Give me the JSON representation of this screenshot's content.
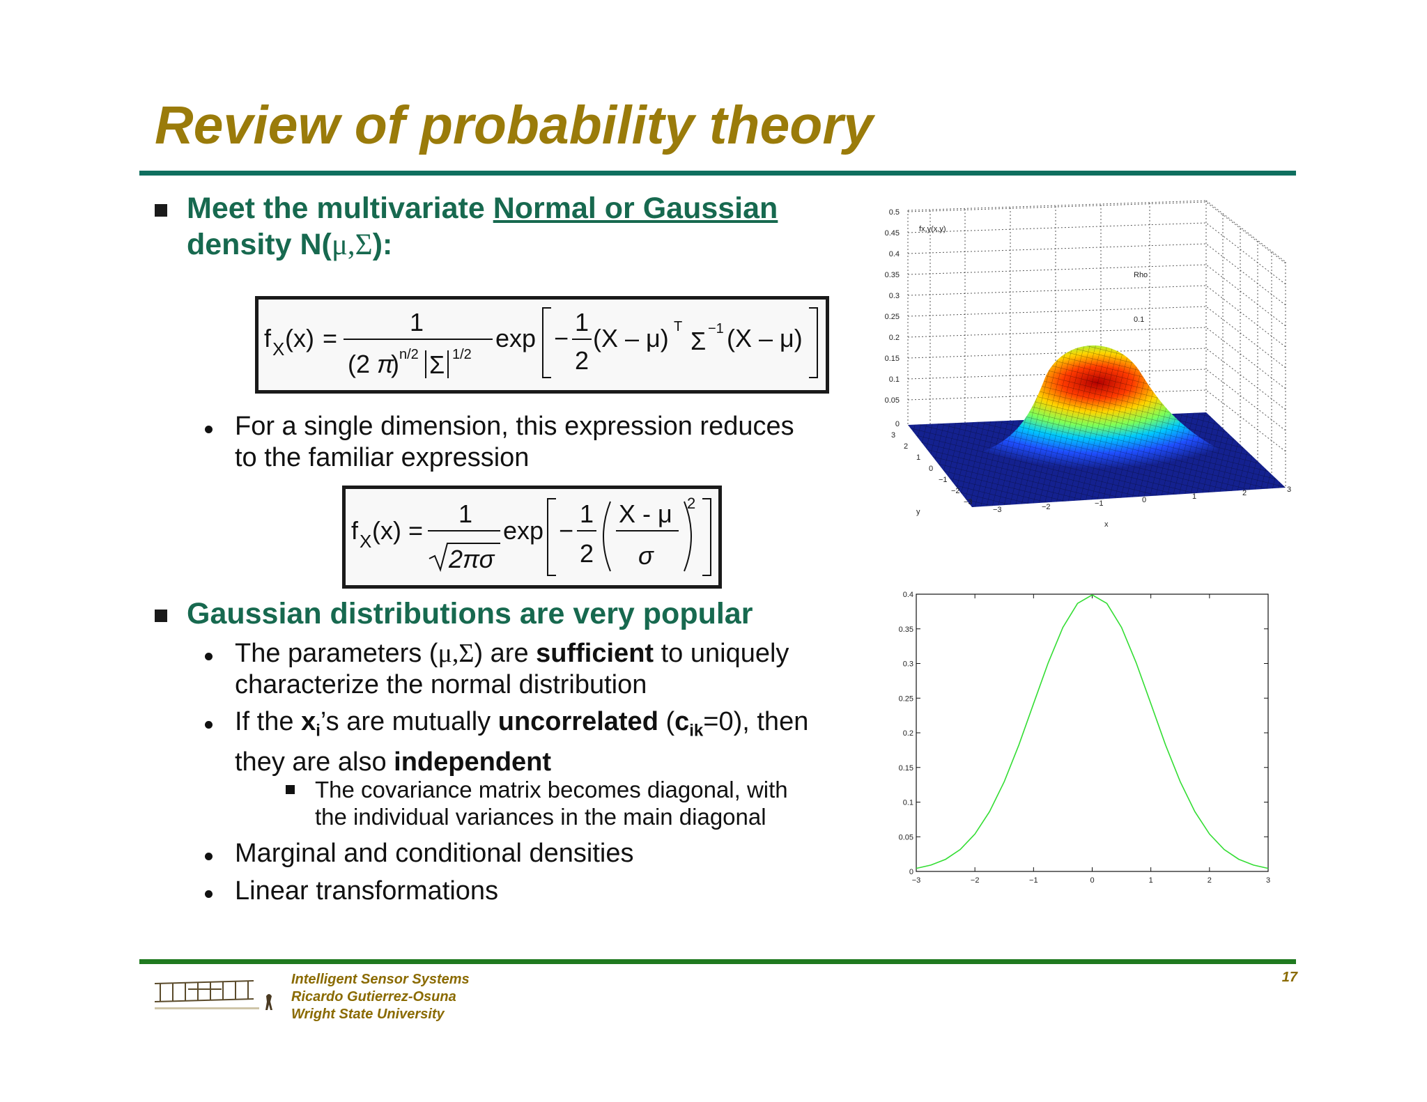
{
  "title": "Review of probability theory",
  "bullets": {
    "b1_pre": "Meet the multivariate ",
    "b1_link": "Normal or Gaussian",
    "b1_line2_pre": "density N(",
    "b1_greek": "μ,Σ",
    "b1_line2_post": "):",
    "sub1_line1": "For a single dimension, this expression reduces",
    "sub1_line2": "to the familiar expression",
    "b2": "Gaussian distributions are very popular",
    "sub2_pre": "The parameters (",
    "sub2_greek": "μ,Σ",
    "sub2_mid": ") are ",
    "sub2_bold": "sufficient",
    "sub2_post": " to uniquely",
    "sub2_line2": "characterize the normal distribution",
    "sub3_pre": "If the ",
    "sub3_x": "x",
    "sub3_i": "i",
    "sub3_mid": "’s are mutually ",
    "sub3_bold": "uncorrelated",
    "sub3_paren": " (",
    "sub3_c": "c",
    "sub3_ik": "ik",
    "sub3_post": "=0), then",
    "sub3_line2_pre": "they are also ",
    "sub3_line2_bold": "independent",
    "subsub1_line1": "The covariance matrix becomes diagonal, with",
    "subsub1_line2": "the individual variances in the main diagonal",
    "sub4": "Marginal and conditional densities",
    "sub5": "Linear transformations"
  },
  "eq1": {
    "lhs": "f",
    "lhs_sub": "X",
    "lhs_arg": "(x)",
    "eq": "=",
    "num": "1",
    "den_pre": "(2 ",
    "den_pi": "π",
    "den_close": ")",
    "den_exp1": "n/2",
    "den_sigma": "Σ",
    "den_exp2": "1/2",
    "exp": "exp",
    "minus": "−",
    "half_num": "1",
    "half_den": "2",
    "term1": "(X – μ)",
    "sup_T": "T",
    "sigma": "Σ",
    "sup_inv": "−1",
    "term2": "(X – μ)"
  },
  "eq2": {
    "lhs": "f",
    "lhs_sub": "X",
    "lhs_arg": "(x)",
    "eq": "=",
    "num": "1",
    "den": "2πσ",
    "exp": "exp",
    "minus": "−",
    "half_num": "1",
    "half_den": "2",
    "frac_num": "X - μ",
    "frac_den": "σ",
    "power": "2"
  },
  "surface_plot": {
    "zlabel": "fx,y(x,y)",
    "ztick_labels": [
      "0.5",
      "0.45",
      "0.4",
      "0.35",
      "0.3",
      "0.25",
      "0.2",
      "0.15",
      "0.1",
      "0.05",
      "0"
    ],
    "xtick_labels": [
      "−3",
      "−2",
      "−1",
      "0",
      "1",
      "2",
      "3"
    ],
    "ytick_labels": [
      "3",
      "2",
      "1",
      "0",
      "−1",
      "−2",
      "−3"
    ],
    "xlabel": "x",
    "ylabel": "y",
    "annot_label": "Rho",
    "annot_value": "0.1"
  },
  "chart_data": {
    "type": "line",
    "x": [
      -3,
      -2.75,
      -2.5,
      -2.25,
      -2,
      -1.75,
      -1.5,
      -1.25,
      -1,
      -0.75,
      -0.5,
      -0.25,
      0,
      0.25,
      0.5,
      0.75,
      1,
      1.25,
      1.5,
      1.75,
      2,
      2.25,
      2.5,
      2.75,
      3
    ],
    "series": [
      {
        "values": [
          0.0044,
          0.0091,
          0.0175,
          0.0317,
          0.054,
          0.0863,
          0.1295,
          0.1826,
          0.242,
          0.3011,
          0.3521,
          0.3867,
          0.3989,
          0.3867,
          0.3521,
          0.3011,
          0.242,
          0.1826,
          0.1295,
          0.0863,
          0.054,
          0.0317,
          0.0175,
          0.0091,
          0.0044
        ]
      }
    ],
    "xlim": [
      -3,
      3
    ],
    "ylim": [
      0,
      0.4
    ],
    "xtick_labels": [
      "−3",
      "−2",
      "−1",
      "0",
      "1",
      "2",
      "3"
    ],
    "ytick_labels": [
      "0",
      "0.05",
      "0.1",
      "0.15",
      "0.2",
      "0.25",
      "0.3",
      "0.35",
      "0.4"
    ],
    "line_color": "#33dd33",
    "grid": false
  },
  "footer": {
    "line1": "Intelligent Sensor Systems",
    "line2": "Ricardo Gutierrez-Osuna",
    "line3": "Wright State University",
    "page": "17"
  }
}
